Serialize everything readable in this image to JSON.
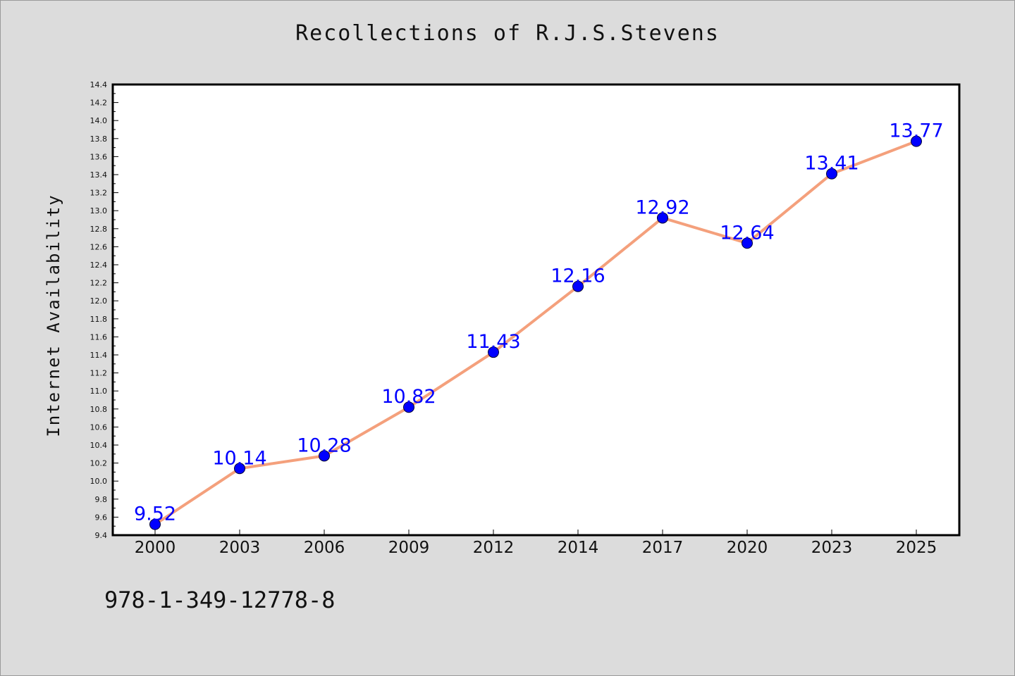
{
  "chart_data": {
    "type": "line",
    "title": "Recollections of R.J.S.Stevens",
    "xlabel": "",
    "ylabel": "Internet Availability",
    "categories": [
      "2000",
      "2003",
      "2006",
      "2009",
      "2012",
      "2014",
      "2017",
      "2020",
      "2023",
      "2025"
    ],
    "series": [
      {
        "values": [
          9.52,
          10.14,
          10.28,
          10.82,
          11.43,
          12.16,
          12.92,
          12.64,
          13.41,
          13.77
        ],
        "line_color": "#f4a07c",
        "marker_color": "#0000ff"
      }
    ],
    "data_labels": [
      "9.52",
      "10.14",
      "10.28",
      "10.82",
      "11.43",
      "12.16",
      "12.92",
      "12.64",
      "13.41",
      "13.77"
    ],
    "ylim": [
      9.4,
      14.4
    ],
    "yticks": [
      "9.4",
      "9.6",
      "9.8",
      "10.0",
      "10.2",
      "10.4",
      "10.6",
      "10.8",
      "11.0",
      "11.2",
      "11.4",
      "11.6",
      "11.8",
      "12.0",
      "12.2",
      "12.4",
      "12.6",
      "12.8",
      "13.0",
      "13.2",
      "13.4",
      "13.6",
      "13.8",
      "14.0",
      "14.2",
      "14.4"
    ],
    "grid": false,
    "label_color": "#0000ff"
  },
  "footer": {
    "isbn": "978-1-349-12778-8"
  }
}
